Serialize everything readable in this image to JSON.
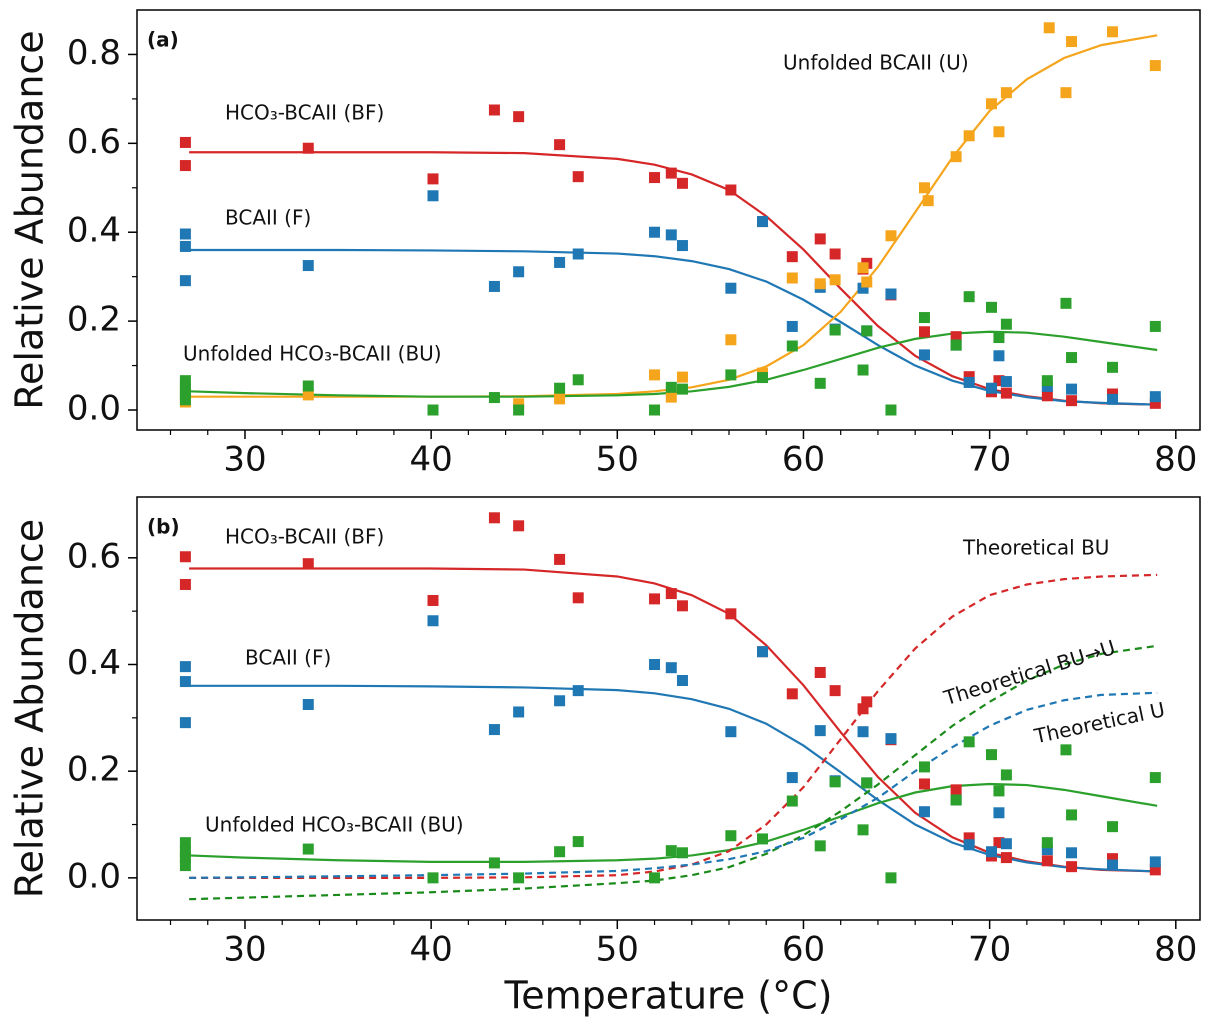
{
  "chart_data": [
    {
      "type": "scatter",
      "panel_label": "(a)",
      "ylabel": "Relative Abundance",
      "xlim": [
        24.2,
        81.3
      ],
      "xticks": [
        30,
        40,
        50,
        60,
        70,
        80
      ],
      "xminorticks": [
        26,
        28,
        32,
        34,
        36,
        38,
        42,
        44,
        46,
        48,
        52,
        54,
        56,
        58,
        62,
        64,
        66,
        68,
        72,
        74,
        76,
        78
      ],
      "ylim": [
        -0.045,
        0.9
      ],
      "yticks": [
        {
          "value": 0,
          "label": "0.0"
        },
        0.2,
        0.4,
        0.6,
        0.8
      ],
      "yminorticks": [
        0.1,
        0.3,
        0.5,
        0.7
      ],
      "series": [
        {
          "name": "HCO₃-BCAII (BF)",
          "color": "#d62728",
          "style": "markers",
          "x": [
            26.8,
            26.8,
            33.4,
            40.1,
            43.4,
            44.7,
            46.9,
            47.9,
            52.0,
            52.9,
            53.5,
            56.1,
            57.8,
            59.4,
            60.9,
            61.7,
            63.2,
            63.4,
            64.7,
            66.5,
            68.2,
            68.9,
            70.1,
            70.5,
            70.9,
            73.1,
            74.4,
            76.6,
            78.9
          ],
          "values": [
            0.602,
            0.55,
            0.589,
            0.52,
            0.675,
            0.66,
            0.597,
            0.525,
            0.523,
            0.533,
            0.51,
            0.495,
            0.424,
            0.345,
            0.385,
            0.351,
            0.317,
            0.33,
            0.259,
            0.176,
            0.165,
            0.075,
            0.041,
            0.066,
            0.038,
            0.032,
            0.021,
            0.036,
            0.015
          ]
        },
        {
          "name": "BCAII (F)",
          "color": "#1f77b4",
          "style": "markers",
          "x": [
            26.8,
            26.8,
            26.8,
            33.4,
            40.1,
            43.4,
            44.7,
            46.9,
            47.9,
            52.0,
            52.9,
            53.5,
            56.1,
            57.8,
            59.4,
            60.9,
            61.7,
            63.2,
            63.4,
            64.7,
            66.5,
            68.2,
            68.9,
            70.1,
            70.5,
            70.9,
            73.1,
            74.4,
            76.6,
            78.9
          ],
          "values": [
            0.396,
            0.368,
            0.291,
            0.325,
            0.482,
            0.278,
            0.311,
            0.332,
            0.351,
            0.4,
            0.394,
            0.37,
            0.274,
            0.424,
            0.188,
            0.276,
            0.182,
            0.274,
            0.178,
            0.261,
            0.124,
            0.146,
            0.062,
            0.049,
            0.122,
            0.064,
            0.053,
            0.047,
            0.024,
            0.03
          ]
        },
        {
          "name": "Unfolded BCAII (U)",
          "color": "#f5a51c",
          "style": "markers",
          "x": [
            26.8,
            33.4,
            44.7,
            46.9,
            52.0,
            52.9,
            53.5,
            56.1,
            57.8,
            59.4,
            60.9,
            61.7,
            63.2,
            63.4,
            64.7,
            66.5,
            66.7,
            68.2,
            68.9,
            70.1,
            70.5,
            70.9,
            73.2,
            74.1,
            74.4,
            76.6,
            78.9
          ],
          "values": [
            0.018,
            0.034,
            0.014,
            0.025,
            0.079,
            0.029,
            0.074,
            0.158,
            0.083,
            0.297,
            0.284,
            0.293,
            0.32,
            0.288,
            0.392,
            0.5,
            0.471,
            0.57,
            0.617,
            0.689,
            0.626,
            0.714,
            0.86,
            0.714,
            0.829,
            0.851,
            0.775
          ]
        },
        {
          "name": "Unfolded HCO₃-BCAII (BU)",
          "color": "#2ca02c",
          "style": "markers",
          "x": [
            26.8,
            26.8,
            26.8,
            26.8,
            33.4,
            40.1,
            43.4,
            44.7,
            46.9,
            47.9,
            52.0,
            52.9,
            53.5,
            56.1,
            57.8,
            59.4,
            60.9,
            61.7,
            63.2,
            63.4,
            64.7,
            66.5,
            68.2,
            68.9,
            70.1,
            70.5,
            70.9,
            73.1,
            74.1,
            74.4,
            76.6,
            78.9
          ],
          "values": [
            0.066,
            0.049,
            0.038,
            0.023,
            0.054,
            0.0,
            0.028,
            0.0,
            0.049,
            0.068,
            0.0,
            0.051,
            0.047,
            0.079,
            0.073,
            0.144,
            0.06,
            0.18,
            0.09,
            0.178,
            0.0,
            0.208,
            0.146,
            0.255,
            0.231,
            0.163,
            0.193,
            0.066,
            0.24,
            0.118,
            0.096,
            0.188
          ]
        },
        {
          "color": "#d62728",
          "style": "solid",
          "x": [
            27,
            30,
            35,
            40,
            45,
            50,
            52,
            54,
            56,
            58,
            60,
            62,
            64,
            66,
            68,
            70,
            72,
            74,
            76,
            79
          ],
          "values": [
            0.58,
            0.58,
            0.58,
            0.58,
            0.578,
            0.565,
            0.552,
            0.53,
            0.495,
            0.436,
            0.361,
            0.273,
            0.189,
            0.122,
            0.076,
            0.047,
            0.031,
            0.021,
            0.015,
            0.012
          ]
        },
        {
          "color": "#1f77b4",
          "style": "solid",
          "x": [
            27,
            30,
            35,
            40,
            45,
            50,
            52,
            54,
            56,
            58,
            60,
            62,
            64,
            66,
            68,
            70,
            72,
            74,
            76,
            79
          ],
          "values": [
            0.36,
            0.36,
            0.36,
            0.359,
            0.357,
            0.352,
            0.346,
            0.335,
            0.317,
            0.289,
            0.248,
            0.198,
            0.146,
            0.1,
            0.066,
            0.043,
            0.029,
            0.02,
            0.016,
            0.012
          ]
        },
        {
          "color": "#f5a51c",
          "style": "solid",
          "x": [
            27,
            30,
            35,
            40,
            45,
            50,
            52,
            54,
            56,
            58,
            60,
            62,
            64,
            66,
            68,
            70,
            72,
            74,
            76,
            79
          ],
          "values": [
            0.03,
            0.03,
            0.03,
            0.03,
            0.031,
            0.036,
            0.042,
            0.051,
            0.068,
            0.098,
            0.146,
            0.221,
            0.322,
            0.445,
            0.568,
            0.673,
            0.744,
            0.792,
            0.821,
            0.843
          ]
        },
        {
          "color": "#2ca02c",
          "style": "solid",
          "x": [
            27,
            30,
            35,
            40,
            45,
            50,
            52,
            54,
            56,
            58,
            60,
            62,
            64,
            66,
            68,
            70,
            72,
            74,
            76,
            79
          ],
          "values": [
            0.042,
            0.038,
            0.033,
            0.03,
            0.03,
            0.033,
            0.036,
            0.042,
            0.052,
            0.068,
            0.09,
            0.115,
            0.14,
            0.16,
            0.172,
            0.176,
            0.174,
            0.165,
            0.153,
            0.135
          ]
        }
      ]
    },
    {
      "type": "scatter",
      "panel_label": "(b)",
      "ylabel": "Relative Abundance",
      "xlabel": "Temperature (°C)",
      "xlim": [
        24.2,
        81.3
      ],
      "xticks": [
        30,
        40,
        50,
        60,
        70,
        80
      ],
      "xminorticks": [
        26,
        28,
        32,
        34,
        36,
        38,
        42,
        44,
        46,
        48,
        52,
        54,
        56,
        58,
        62,
        64,
        66,
        68,
        72,
        74,
        76,
        78
      ],
      "ylim": [
        -0.079,
        0.714
      ],
      "yticks": [
        {
          "value": 0,
          "label": "0.0"
        },
        0.2,
        0.4,
        0.6
      ],
      "yminorticks": [
        0.1,
        0.3,
        0.5
      ],
      "series": [
        {
          "name": "HCO₃-BCAII (BF)",
          "color": "#d62728",
          "style": "markers",
          "x": [
            26.8,
            26.8,
            33.4,
            40.1,
            43.4,
            44.7,
            46.9,
            47.9,
            52.0,
            52.9,
            53.5,
            56.1,
            57.8,
            59.4,
            60.9,
            61.7,
            63.2,
            63.4,
            64.7,
            66.5,
            68.2,
            68.9,
            70.1,
            70.5,
            70.9,
            73.1,
            74.4,
            76.6,
            78.9
          ],
          "values": [
            0.602,
            0.55,
            0.589,
            0.52,
            0.675,
            0.66,
            0.597,
            0.525,
            0.523,
            0.533,
            0.51,
            0.495,
            0.424,
            0.345,
            0.385,
            0.351,
            0.317,
            0.33,
            0.259,
            0.176,
            0.165,
            0.075,
            0.041,
            0.066,
            0.038,
            0.032,
            0.021,
            0.036,
            0.015
          ]
        },
        {
          "name": "BCAII (F)",
          "color": "#1f77b4",
          "style": "markers",
          "x": [
            26.8,
            26.8,
            26.8,
            33.4,
            40.1,
            43.4,
            44.7,
            46.9,
            47.9,
            52.0,
            52.9,
            53.5,
            56.1,
            57.8,
            59.4,
            60.9,
            61.7,
            63.2,
            63.4,
            64.7,
            66.5,
            68.2,
            68.9,
            70.1,
            70.5,
            70.9,
            73.1,
            74.4,
            76.6,
            78.9
          ],
          "values": [
            0.396,
            0.368,
            0.291,
            0.325,
            0.482,
            0.278,
            0.311,
            0.332,
            0.351,
            0.4,
            0.394,
            0.37,
            0.274,
            0.424,
            0.188,
            0.276,
            0.182,
            0.274,
            0.178,
            0.261,
            0.124,
            0.146,
            0.062,
            0.049,
            0.122,
            0.064,
            0.053,
            0.047,
            0.024,
            0.03
          ]
        },
        {
          "name": "Unfolded HCO₃-BCAII (BU)",
          "color": "#2ca02c",
          "style": "markers",
          "x": [
            26.8,
            26.8,
            26.8,
            26.8,
            33.4,
            40.1,
            43.4,
            44.7,
            46.9,
            47.9,
            52.0,
            52.9,
            53.5,
            56.1,
            57.8,
            59.4,
            60.9,
            61.7,
            63.2,
            63.4,
            64.7,
            66.5,
            68.2,
            68.9,
            70.1,
            70.5,
            70.9,
            73.1,
            74.1,
            74.4,
            76.6,
            78.9
          ],
          "values": [
            0.066,
            0.049,
            0.038,
            0.023,
            0.054,
            0.0,
            0.028,
            0.0,
            0.049,
            0.068,
            0.0,
            0.051,
            0.047,
            0.079,
            0.073,
            0.144,
            0.06,
            0.18,
            0.09,
            0.178,
            0.0,
            0.208,
            0.146,
            0.255,
            0.231,
            0.163,
            0.193,
            0.066,
            0.24,
            0.118,
            0.096,
            0.188
          ]
        },
        {
          "color": "#d62728",
          "style": "solid",
          "x": [
            27,
            30,
            35,
            40,
            45,
            50,
            52,
            54,
            56,
            58,
            60,
            62,
            64,
            66,
            68,
            70,
            72,
            74,
            76,
            79
          ],
          "values": [
            0.58,
            0.58,
            0.58,
            0.58,
            0.578,
            0.565,
            0.552,
            0.53,
            0.495,
            0.436,
            0.361,
            0.273,
            0.189,
            0.122,
            0.076,
            0.047,
            0.031,
            0.021,
            0.015,
            0.012
          ]
        },
        {
          "color": "#1f77b4",
          "style": "solid",
          "x": [
            27,
            30,
            35,
            40,
            45,
            50,
            52,
            54,
            56,
            58,
            60,
            62,
            64,
            66,
            68,
            70,
            72,
            74,
            76,
            79
          ],
          "values": [
            0.36,
            0.36,
            0.36,
            0.359,
            0.357,
            0.352,
            0.346,
            0.335,
            0.317,
            0.289,
            0.248,
            0.198,
            0.146,
            0.1,
            0.066,
            0.043,
            0.029,
            0.02,
            0.016,
            0.012
          ]
        },
        {
          "color": "#2ca02c",
          "style": "solid",
          "x": [
            27,
            30,
            35,
            40,
            45,
            50,
            52,
            54,
            56,
            58,
            60,
            62,
            64,
            66,
            68,
            70,
            72,
            74,
            76,
            79
          ],
          "values": [
            0.042,
            0.038,
            0.033,
            0.03,
            0.03,
            0.033,
            0.036,
            0.042,
            0.052,
            0.068,
            0.09,
            0.115,
            0.14,
            0.16,
            0.172,
            0.176,
            0.174,
            0.165,
            0.153,
            0.135
          ]
        },
        {
          "name": "Theoretical BU",
          "color": "#d62728",
          "style": "dashed",
          "x": [
            27,
            30,
            35,
            40,
            45,
            50,
            52,
            54,
            56,
            58,
            60,
            62,
            64,
            66,
            68,
            70,
            72,
            74,
            76,
            79
          ],
          "values": [
            0,
            0,
            0,
            0,
            0.001,
            0.005,
            0.012,
            0.025,
            0.05,
            0.1,
            0.17,
            0.26,
            0.35,
            0.43,
            0.49,
            0.53,
            0.55,
            0.56,
            0.565,
            0.568
          ]
        },
        {
          "name": "Theoretical BU→U",
          "color": "#1a8a1a",
          "style": "dashed",
          "x": [
            27,
            30,
            35,
            40,
            45,
            50,
            52,
            54,
            56,
            58,
            60,
            62,
            64,
            66,
            68,
            70,
            72,
            74,
            76,
            79
          ],
          "values": [
            -0.04,
            -0.037,
            -0.032,
            -0.027,
            -0.02,
            -0.01,
            -0.005,
            0.005,
            0.02,
            0.045,
            0.08,
            0.125,
            0.175,
            0.23,
            0.285,
            0.33,
            0.37,
            0.4,
            0.42,
            0.435
          ]
        },
        {
          "name": "Theoretical U",
          "color": "#1f77b4",
          "style": "dashed",
          "x": [
            27,
            30,
            35,
            40,
            45,
            50,
            52,
            54,
            56,
            58,
            60,
            62,
            64,
            66,
            68,
            70,
            72,
            74,
            76,
            79
          ],
          "values": [
            0,
            0.001,
            0.003,
            0.005,
            0.008,
            0.013,
            0.018,
            0.025,
            0.035,
            0.05,
            0.075,
            0.11,
            0.15,
            0.2,
            0.245,
            0.285,
            0.315,
            0.333,
            0.343,
            0.347
          ]
        }
      ]
    }
  ]
}
